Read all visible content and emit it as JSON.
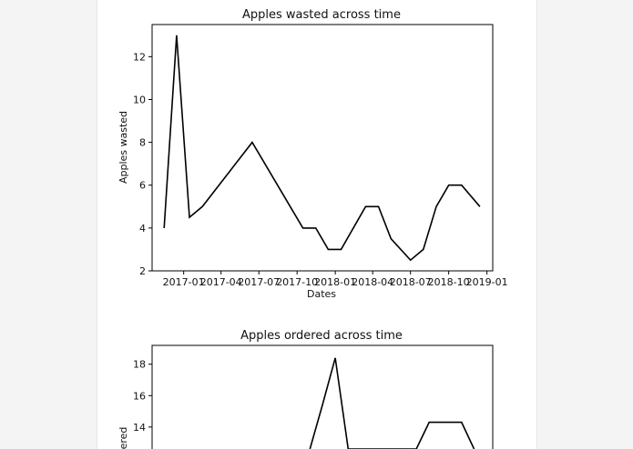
{
  "chart_data": [
    {
      "type": "line",
      "title": "Apples wasted across time",
      "xlabel": "Dates",
      "ylabel": "Apples wasted",
      "x_ticks": [
        "2017-01",
        "2017-04",
        "2017-07",
        "2017-10",
        "2018-01",
        "2018-04",
        "2018-07",
        "2018-10",
        "2019-01"
      ],
      "y_ticks": [
        "2",
        "4",
        "6",
        "8",
        "10",
        "12"
      ],
      "ylim": [
        2,
        13.5
      ],
      "xlim": [
        "2016-10-17",
        "2019-01-15"
      ],
      "grid": false,
      "line_color": "#000000",
      "series": [
        {
          "x": [
            "2016-11-15",
            "2016-12-15",
            "2017-01-15",
            "2017-02-15",
            "2017-06-15",
            "2017-10-15",
            "2017-11-15",
            "2017-12-15",
            "2018-01-15",
            "2018-03-15",
            "2018-04-15",
            "2018-05-15",
            "2018-07-01",
            "2018-08-01",
            "2018-09-01",
            "2018-10-01",
            "2018-11-01",
            "2018-12-15"
          ],
          "y": [
            4,
            13,
            4.5,
            5,
            8,
            4,
            4,
            3,
            3,
            5,
            5,
            3.5,
            2.5,
            3,
            5,
            6,
            6,
            5
          ]
        }
      ]
    },
    {
      "type": "line",
      "title": "Apples ordered across time",
      "xlabel": "",
      "ylabel": "Apples ordered",
      "ylabel_visible": "ered",
      "y_ticks": [
        "14",
        "16",
        "18"
      ],
      "ylim_visible": [
        12.6,
        19.2
      ],
      "xlim": [
        "2016-10-17",
        "2019-01-15"
      ],
      "grid": false,
      "line_color": "#000000",
      "series": [
        {
          "x": [
            "2017-11-01",
            "2017-12-01",
            "2018-01-01",
            "2018-02-01",
            "2018-07-15",
            "2018-08-15",
            "2018-11-01",
            "2018-12-01"
          ],
          "y": [
            12.6,
            15.4,
            18.4,
            12.6,
            12.6,
            14.3,
            14.3,
            12.6
          ]
        }
      ]
    }
  ]
}
